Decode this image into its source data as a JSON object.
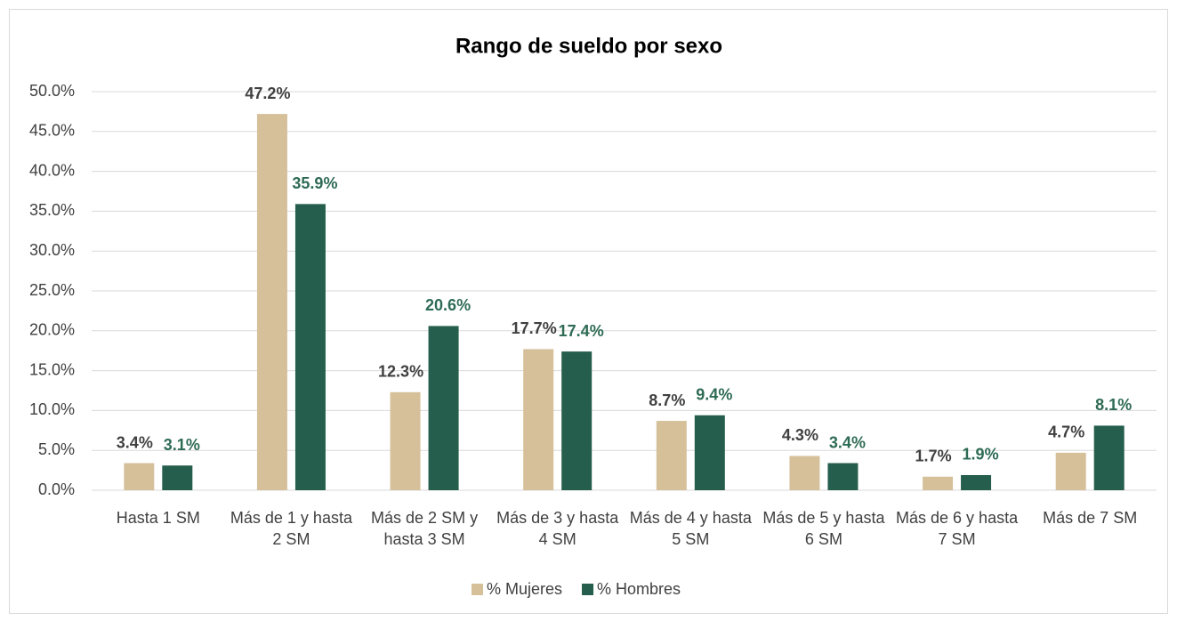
{
  "chart_data": {
    "type": "bar",
    "title": "Rango de sueldo por sexo",
    "categories": [
      "Hasta 1 SM",
      "Más de 1 y hasta 2 SM",
      "Más de 2 SM y hasta 3 SM",
      "Más de 3 y hasta 4 SM",
      "Más de 4 y hasta 5 SM",
      "Más de 5 y hasta 6 SM",
      "Más de 6 y hasta 7 SM",
      "Más de 7 SM"
    ],
    "series": [
      {
        "name": "% Mujeres",
        "color": "#d5c09a",
        "label_color": "#404040",
        "values": [
          3.4,
          47.2,
          12.3,
          17.7,
          8.7,
          4.3,
          1.7,
          4.7
        ],
        "value_labels": [
          "3.4%",
          "47.2%",
          "12.3%",
          "17.7%",
          "8.7%",
          "4.3%",
          "1.7%",
          "4.7%"
        ]
      },
      {
        "name": "% Hombres",
        "color": "#255e4c",
        "label_color": "#2e6b55",
        "values": [
          3.1,
          35.9,
          20.6,
          17.4,
          9.4,
          3.4,
          1.9,
          8.1
        ],
        "value_labels": [
          "3.1%",
          "35.9%",
          "20.6%",
          "17.4%",
          "9.4%",
          "3.4%",
          "1.9%",
          "8.1%"
        ]
      }
    ],
    "ylim": [
      0,
      50
    ],
    "yticks": [
      {
        "value": 0,
        "label": "0.0%"
      },
      {
        "value": 5,
        "label": "5.0%"
      },
      {
        "value": 10,
        "label": "10.0%"
      },
      {
        "value": 15,
        "label": "15.0%"
      },
      {
        "value": 20,
        "label": "20.0%"
      },
      {
        "value": 25,
        "label": "25.0%"
      },
      {
        "value": 30,
        "label": "30.0%"
      },
      {
        "value": 35,
        "label": "35.0%"
      },
      {
        "value": 40,
        "label": "40.0%"
      },
      {
        "value": 45,
        "label": "45.0%"
      },
      {
        "value": 50,
        "label": "50.0%"
      }
    ],
    "grid": true,
    "legend": "bottom"
  }
}
